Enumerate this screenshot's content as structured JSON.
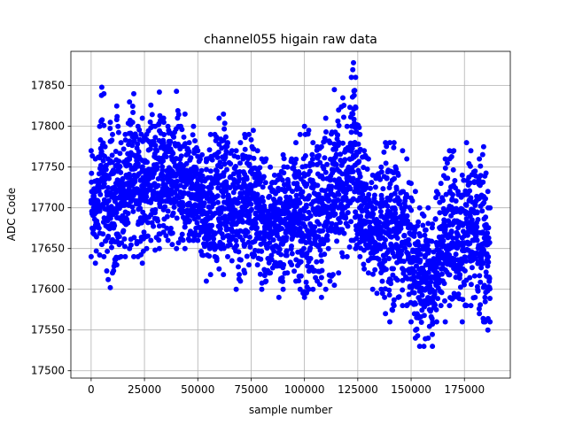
{
  "chart_data": {
    "type": "scatter",
    "title": "channel055 higain raw data",
    "xlabel": "sample number",
    "ylabel": "ADC Code",
    "xlim": [
      -9500,
      196500
    ],
    "ylim": [
      17491,
      17892
    ],
    "xticks": [
      0,
      25000,
      50000,
      75000,
      100000,
      125000,
      150000,
      175000
    ],
    "yticks": [
      17500,
      17550,
      17600,
      17650,
      17700,
      17750,
      17800,
      17850
    ],
    "grid": true,
    "series": [
      {
        "color": "#0000ff",
        "marker": "circle",
        "x_range": [
          0,
          187000
        ],
        "envelope": {
          "x": [
            0,
            2000,
            4000,
            5000,
            6000,
            8000,
            9000,
            10000,
            12000,
            14000,
            16000,
            18000,
            20000,
            22000,
            24000,
            26000,
            28000,
            30000,
            32000,
            34000,
            36000,
            38000,
            40000,
            42000,
            44000,
            46000,
            48000,
            50000,
            52000,
            54000,
            56000,
            58000,
            60000,
            62000,
            64000,
            66000,
            68000,
            70000,
            72000,
            74000,
            76000,
            78000,
            80000,
            82000,
            84000,
            86000,
            88000,
            90000,
            92000,
            94000,
            96000,
            98000,
            100000,
            102000,
            104000,
            106000,
            108000,
            110000,
            112000,
            114000,
            116000,
            118000,
            120000,
            122000,
            123000,
            124000,
            126000,
            128000,
            130000,
            132000,
            134000,
            136000,
            138000,
            140000,
            142000,
            144000,
            146000,
            148000,
            150000,
            152000,
            154000,
            156000,
            158000,
            160000,
            162000,
            164000,
            166000,
            168000,
            170000,
            172000,
            174000,
            176000,
            178000,
            180000,
            182000,
            184000,
            186000,
            187000
          ],
          "high": [
            17770,
            17760,
            17800,
            17848,
            17840,
            17760,
            17805,
            17790,
            17825,
            17780,
            17790,
            17830,
            17840,
            17800,
            17810,
            17790,
            17826,
            17800,
            17842,
            17810,
            17800,
            17790,
            17843,
            17800,
            17815,
            17780,
            17800,
            17770,
            17765,
            17760,
            17790,
            17790,
            17810,
            17815,
            17780,
            17770,
            17770,
            17780,
            17790,
            17790,
            17795,
            17770,
            17760,
            17760,
            17750,
            17740,
            17740,
            17765,
            17750,
            17760,
            17780,
            17790,
            17800,
            17795,
            17780,
            17775,
            17775,
            17810,
            17780,
            17845,
            17820,
            17835,
            17800,
            17860,
            17878,
            17860,
            17790,
            17770,
            17760,
            17740,
            17740,
            17750,
            17780,
            17780,
            17780,
            17740,
            17770,
            17760,
            17730,
            17720,
            17700,
            17690,
            17700,
            17680,
            17720,
            17730,
            17760,
            17770,
            17770,
            17720,
            17740,
            17780,
            17770,
            17745,
            17760,
            17775,
            17720,
            17700
          ],
          "low": [
            17640,
            17632,
            17642,
            17655,
            17640,
            17612,
            17602,
            17620,
            17630,
            17640,
            17640,
            17650,
            17640,
            17640,
            17632,
            17650,
            17660,
            17648,
            17650,
            17670,
            17660,
            17655,
            17650,
            17662,
            17650,
            17660,
            17660,
            17660,
            17642,
            17610,
            17618,
            17640,
            17625,
            17618,
            17640,
            17635,
            17600,
            17610,
            17620,
            17630,
            17640,
            17630,
            17600,
            17610,
            17620,
            17630,
            17590,
            17600,
            17620,
            17630,
            17610,
            17600,
            17590,
            17600,
            17600,
            17610,
            17590,
            17600,
            17610,
            17605,
            17620,
            17640,
            17640,
            17660,
            17660,
            17650,
            17640,
            17625,
            17620,
            17600,
            17595,
            17600,
            17570,
            17560,
            17580,
            17590,
            17580,
            17580,
            17560,
            17540,
            17530,
            17530,
            17540,
            17530,
            17560,
            17580,
            17560,
            17580,
            17590,
            17590,
            17560,
            17580,
            17580,
            17590,
            17570,
            17560,
            17550,
            17560
          ]
        }
      }
    ]
  }
}
